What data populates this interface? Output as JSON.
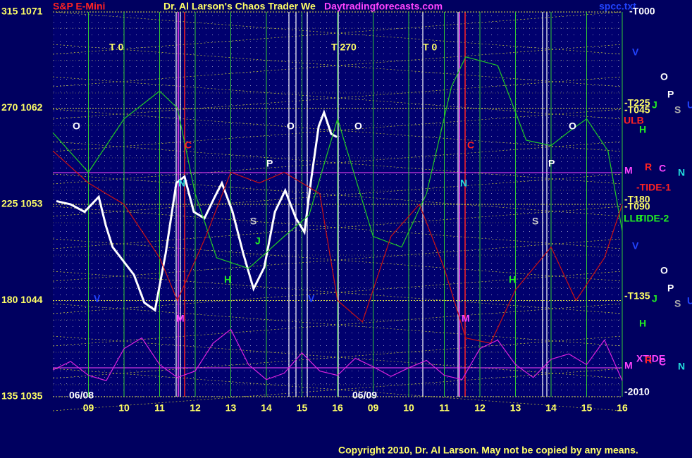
{
  "chart_data": {
    "type": "line",
    "header": {
      "instrument": "S&P E-Mini",
      "title": "Dr. Al Larson's Chaos Trader We",
      "site": "Daytradingforecasts.com",
      "file": "spcc.txt"
    },
    "copyright": "Copyright 2010, Dr. Al Larson. May not be copied by any means.",
    "xlim": [
      0,
      16
    ],
    "ylim": [
      1035,
      1071
    ],
    "xticks": [
      {
        "value": 1,
        "label": "09"
      },
      {
        "value": 2,
        "label": "10"
      },
      {
        "value": 3,
        "label": "11"
      },
      {
        "value": 4,
        "label": "12"
      },
      {
        "value": 5,
        "label": "13"
      },
      {
        "value": 6,
        "label": "14"
      },
      {
        "value": 7,
        "label": "15"
      },
      {
        "value": 8,
        "label": "16"
      },
      {
        "value": 9,
        "label": "09"
      },
      {
        "value": 10,
        "label": "10"
      },
      {
        "value": 11,
        "label": "11"
      },
      {
        "value": 12,
        "label": "12"
      },
      {
        "value": 13,
        "label": "13"
      },
      {
        "value": 14,
        "label": "14"
      },
      {
        "value": 15,
        "label": "15"
      },
      {
        "value": 16,
        "label": "16"
      }
    ],
    "yticks": [
      {
        "value": 1035,
        "label": "135 1035"
      },
      {
        "value": 1044,
        "label": "180 1044"
      },
      {
        "value": 1053,
        "label": "225 1053"
      },
      {
        "value": 1062,
        "label": "270 1062"
      },
      {
        "value": 1071,
        "label": "315 1071"
      }
    ],
    "grid": true,
    "series": [
      {
        "color": "#ffffff",
        "x": [
          0.1,
          0.5,
          0.89,
          1.29,
          1.49,
          1.68,
          1.98,
          2.28,
          2.57,
          2.87,
          3.17,
          3.47,
          3.7,
          3.96,
          4.26,
          4.55,
          4.75,
          5.05,
          5.35,
          5.64,
          5.94,
          6.24,
          6.53,
          6.83,
          7.07,
          7.27,
          7.47,
          7.62,
          7.82,
          7.98
        ],
        "values": [
          1053.3,
          1053,
          1052.3,
          1053.7,
          1051,
          1049,
          1047.7,
          1046.4,
          1043.8,
          1043.1,
          1048.4,
          1055,
          1055.6,
          1052.3,
          1051.7,
          1053.7,
          1055,
          1052.3,
          1048.4,
          1045.1,
          1047.1,
          1052.3,
          1054.3,
          1051.7,
          1050.4,
          1055.6,
          1060.3,
          1061.6,
          1059.6,
          1059.3
        ]
      },
      {
        "color": "#22cc22",
        "x": [
          0,
          1,
          2,
          3,
          3.5,
          4,
          4.6,
          5.5,
          6.5,
          7.2,
          8,
          9,
          9.8,
          10.5,
          11.2,
          11.6,
          12.5,
          13.3,
          14,
          14.5,
          15,
          15.6,
          16
        ],
        "values": [
          1059.7,
          1056,
          1061,
          1063.6,
          1062,
          1054,
          1048,
          1047,
          1050,
          1052,
          1061,
          1050,
          1049,
          1054,
          1064,
          1066.8,
          1066,
          1059,
          1058.5,
          1059.8,
          1061,
          1058,
          1050.5
        ]
      },
      {
        "color": "#cc1111",
        "x": [
          0,
          1,
          2,
          3,
          3.5,
          4.3,
          5,
          5.8,
          6.5,
          7.5,
          8,
          8.7,
          9.5,
          10.3,
          11,
          11.6,
          12.3,
          13,
          14,
          14.7,
          15.5,
          16
        ],
        "values": [
          1058,
          1055,
          1053,
          1048,
          1044,
          1050,
          1056,
          1055,
          1056,
          1054,
          1044,
          1042,
          1050,
          1053,
          1047,
          1040.5,
          1040,
          1045,
          1049,
          1044,
          1048,
          1053
        ]
      },
      {
        "color": "#dd22dd",
        "x": [
          0,
          0.5,
          1,
          1.5,
          2,
          2.5,
          3,
          3.5,
          4,
          4.5,
          5,
          5.5,
          6,
          6.5,
          7,
          7.5,
          8,
          8.5,
          9,
          9.5,
          10,
          10.5,
          11,
          11.5,
          12,
          12.5,
          13,
          13.5,
          14,
          14.5,
          15,
          15.5,
          16
        ],
        "values": [
          1037.5,
          1038.3,
          1037,
          1036.5,
          1039.5,
          1040.5,
          1038,
          1036.8,
          1037.4,
          1040,
          1041.3,
          1038,
          1036.6,
          1037.2,
          1039.1,
          1037.4,
          1037,
          1038.6,
          1037.8,
          1036.9,
          1037.7,
          1038.4,
          1037,
          1036.6,
          1039.5,
          1040.3,
          1038,
          1036.8,
          1038.5,
          1039,
          1038,
          1040.3,
          1036.5
        ]
      }
    ],
    "annotations": [
      {
        "text": "T  0",
        "color": "#ffff66"
      },
      {
        "text": "T  270",
        "color": "#ffff66"
      },
      {
        "text": "T  0",
        "color": "#ffff66"
      },
      {
        "text": "O",
        "color": "#ffffff"
      },
      {
        "text": "O",
        "color": "#ffffff"
      },
      {
        "text": "O",
        "color": "#ffffff"
      },
      {
        "text": "O",
        "color": "#ffffff"
      },
      {
        "text": "P",
        "color": "#ffffff"
      },
      {
        "text": "P",
        "color": "#ffffff"
      },
      {
        "text": "C",
        "color": "#ff2222"
      },
      {
        "text": "C",
        "color": "#ff2222"
      },
      {
        "text": "N",
        "color": "#22dddd"
      },
      {
        "text": "N",
        "color": "#22dddd"
      },
      {
        "text": "H",
        "color": "#22ee22"
      },
      {
        "text": "H",
        "color": "#22ee22"
      },
      {
        "text": "M",
        "color": "#ff44ff"
      },
      {
        "text": "M",
        "color": "#ff44ff"
      },
      {
        "text": "S",
        "color": "#cccccc"
      },
      {
        "text": "S",
        "color": "#cccccc"
      },
      {
        "text": "J",
        "color": "#22ee22"
      },
      {
        "text": "V",
        "color": "#2244ff"
      },
      {
        "text": "V",
        "color": "#2244ff"
      },
      {
        "text": "V",
        "color": "#2244ff"
      },
      {
        "text": "V",
        "color": "#2244ff"
      },
      {
        "text": "06/08",
        "color": "#ffffff"
      },
      {
        "text": "06/09",
        "color": "#ffffff"
      },
      {
        "text": "-T000",
        "color": "#ffffff"
      },
      {
        "text": "-T225",
        "color": "#ffff66"
      },
      {
        "text": "-T045",
        "color": "#ffff66"
      },
      {
        "text": "-T180",
        "color": "#ffff66"
      },
      {
        "text": "-T090",
        "color": "#ffff66"
      },
      {
        "text": "-T135",
        "color": "#ffff66"
      },
      {
        "text": "-2010",
        "color": "#ffffff"
      },
      {
        "text": "O",
        "color": "#ffffff"
      },
      {
        "text": "P",
        "color": "#ffffff"
      },
      {
        "text": "S",
        "color": "#aaaaaa"
      },
      {
        "text": "U",
        "color": "#2244ff"
      },
      {
        "text": "J",
        "color": "#22ee22"
      },
      {
        "text": "H",
        "color": "#22ee22"
      },
      {
        "text": "ULB",
        "color": "#ff2222"
      },
      {
        "text": "M",
        "color": "#ff44ff"
      },
      {
        "text": "R",
        "color": "#ff2222"
      },
      {
        "text": "C",
        "color": "#ff44ff"
      },
      {
        "text": "N",
        "color": "#22dddd"
      },
      {
        "text": "-TIDE-1",
        "color": "#ff2222"
      },
      {
        "text": "LLB",
        "color": "#22ee22"
      },
      {
        "text": "TIDE-2",
        "color": "#22ee22"
      },
      {
        "text": "O",
        "color": "#ffffff"
      },
      {
        "text": "P",
        "color": "#ffffff"
      },
      {
        "text": "S",
        "color": "#aaaaaa"
      },
      {
        "text": "U",
        "color": "#2244ff"
      },
      {
        "text": "J",
        "color": "#22ee22"
      },
      {
        "text": "H",
        "color": "#22ee22"
      },
      {
        "text": "M",
        "color": "#ff44ff"
      },
      {
        "text": "XTIDE",
        "color": "#ff44ff"
      },
      {
        "text": "R",
        "color": "#ff2222"
      },
      {
        "text": "C",
        "color": "#ff44ff"
      },
      {
        "text": "N",
        "color": "#22dddd"
      }
    ]
  }
}
